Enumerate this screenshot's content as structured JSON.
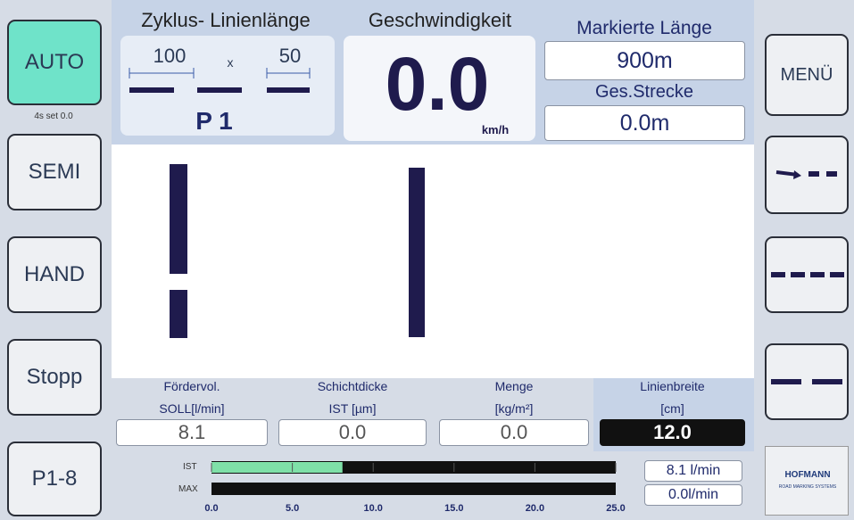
{
  "left_buttons": [
    {
      "label": "AUTO",
      "sub": "4s set 0.0"
    },
    {
      "label": "SEMI"
    },
    {
      "label": "HAND"
    },
    {
      "label": "Stopp"
    },
    {
      "label": "P1-8"
    }
  ],
  "cycle": {
    "title": "Zyklus- Linienlänge",
    "line_length": "100",
    "times": "x",
    "gap_length": "50",
    "program": "P 1"
  },
  "speed": {
    "title": "Geschwindigkeit",
    "value": "0.0",
    "unit": "km/h"
  },
  "marked_length": {
    "title": "Markierte Länge",
    "value": "900m"
  },
  "total_distance": {
    "title": "Ges.Strecke",
    "value": "0.0m"
  },
  "right_buttons": [
    {
      "label": "MENÜ"
    }
  ],
  "fields": [
    {
      "label": "Fördervol.",
      "unit": "SOLL[l/min]",
      "value": "8.1"
    },
    {
      "label": "Schichtdicke",
      "unit": "IST [µm]",
      "value": "0.0"
    },
    {
      "label": "Menge",
      "unit": "[kg/m²]",
      "value": "0.0"
    },
    {
      "label": "Linienbreite",
      "unit": "[cm]",
      "value": "12.0"
    }
  ],
  "gauge": {
    "ist_label": "IST",
    "max_label": "MAX",
    "value": 8.1,
    "xlim": [
      0,
      25
    ],
    "xticks": [
      {
        "value": 0,
        "label": "0.0"
      },
      {
        "value": 5,
        "label": "5.0"
      },
      {
        "value": 10,
        "label": "10.0"
      },
      {
        "value": 15,
        "label": "15.0"
      },
      {
        "value": 20,
        "label": "20.0"
      },
      {
        "value": 25,
        "label": "25.0"
      }
    ],
    "readouts": [
      "8.1 l/min",
      "0.0l/min"
    ]
  },
  "logo": {
    "name": "HOFMANN",
    "tagline": "ROAD MARKING SYSTEMS"
  }
}
